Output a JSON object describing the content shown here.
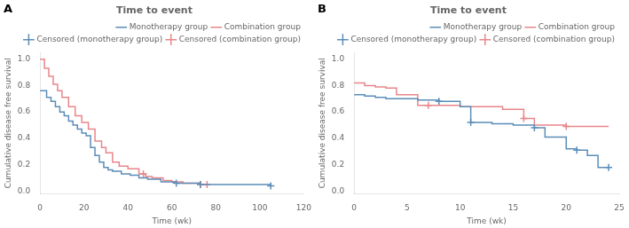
{
  "chart_data": [
    {
      "type": "line",
      "title": "Time to event",
      "xlabel": "Time (wk)",
      "ylabel": "Cumulative disease free survival",
      "annotations": [
        {
          "text": "A"
        }
      ],
      "xlim": [
        0,
        120
      ],
      "ylim": [
        -0.02,
        1.05
      ],
      "xticks": [
        0,
        20,
        40,
        60,
        80,
        100,
        120
      ],
      "yticks": [
        {
          "value": 0,
          "label": "0.0"
        },
        0.2,
        0.4,
        0.6,
        0.8,
        {
          "value": 1.0,
          "label": "1.0"
        }
      ],
      "grid": false,
      "legend": "upper right",
      "series": [
        {
          "name": "Monotherapy group",
          "type": "step",
          "color": "#5B8DB8",
          "x": [
            0,
            3,
            5,
            7,
            9,
            11,
            13,
            15,
            17,
            19,
            21,
            23,
            25,
            27,
            29,
            31,
            33,
            37,
            41,
            45,
            49,
            55,
            62,
            73,
            105
          ],
          "values": [
            0.76,
            0.71,
            0.68,
            0.64,
            0.6,
            0.57,
            0.53,
            0.5,
            0.47,
            0.44,
            0.42,
            0.33,
            0.27,
            0.22,
            0.18,
            0.16,
            0.15,
            0.13,
            0.12,
            0.1,
            0.09,
            0.07,
            0.06,
            0.05,
            0.04
          ]
        },
        {
          "name": "Combination group",
          "type": "step",
          "color": "#E8868A",
          "x": [
            0,
            2,
            4,
            6,
            8,
            10,
            13,
            16,
            19,
            22,
            25,
            28,
            30,
            33,
            36,
            40,
            45,
            48,
            51,
            56,
            60,
            65,
            73,
            76
          ],
          "values": [
            1.0,
            0.93,
            0.87,
            0.81,
            0.76,
            0.71,
            0.64,
            0.57,
            0.52,
            0.47,
            0.38,
            0.33,
            0.29,
            0.22,
            0.19,
            0.17,
            0.13,
            0.11,
            0.1,
            0.08,
            0.07,
            0.06,
            0.05,
            0.05
          ]
        },
        {
          "name": "Censored (monotherapy group)",
          "type": "scatter",
          "marker": "plus",
          "color": "#5B8DB8",
          "x": [
            62,
            73,
            105
          ],
          "values": [
            0.06,
            0.05,
            0.04
          ]
        },
        {
          "name": "Censored (combination group)",
          "type": "scatter",
          "marker": "plus",
          "color": "#E8868A",
          "x": [
            47,
            73,
            76
          ],
          "values": [
            0.13,
            0.05,
            0.05
          ]
        }
      ]
    },
    {
      "type": "line",
      "title": "Time to event",
      "xlabel": "Time (wk)",
      "ylabel": "Cumulative disease free survival",
      "annotations": [
        {
          "text": "B"
        }
      ],
      "xlim": [
        0,
        25
      ],
      "ylim": [
        -0.02,
        1.05
      ],
      "xticks": [
        0,
        5,
        10,
        15,
        20,
        25
      ],
      "yticks": [
        {
          "value": 0,
          "label": "0.0"
        },
        0.2,
        0.4,
        0.6,
        0.8,
        {
          "value": 1.0,
          "label": "1.0"
        }
      ],
      "grid": false,
      "legend": "upper right",
      "series": [
        {
          "name": "Monotherapy group",
          "type": "step",
          "color": "#5B8DB8",
          "x": [
            0,
            1,
            2,
            3,
            4,
            6,
            8,
            10,
            11,
            13,
            15,
            17,
            18,
            20,
            21,
            22,
            23,
            24
          ],
          "values": [
            0.73,
            0.72,
            0.71,
            0.7,
            0.7,
            0.69,
            0.68,
            0.64,
            0.52,
            0.51,
            0.5,
            0.48,
            0.41,
            0.32,
            0.31,
            0.27,
            0.18,
            0.18
          ]
        },
        {
          "name": "Combination group",
          "type": "step",
          "color": "#E8868A",
          "x": [
            0,
            1,
            2,
            3,
            4,
            6,
            7,
            9,
            10,
            12,
            14,
            16,
            17,
            19,
            20,
            24
          ],
          "values": [
            0.82,
            0.8,
            0.79,
            0.78,
            0.73,
            0.65,
            0.65,
            0.65,
            0.64,
            0.64,
            0.62,
            0.55,
            0.5,
            0.5,
            0.49,
            0.49
          ]
        },
        {
          "name": "Censored (monotherapy group)",
          "type": "scatter",
          "marker": "plus",
          "color": "#5B8DB8",
          "x": [
            8,
            11,
            17,
            21,
            24
          ],
          "values": [
            0.68,
            0.52,
            0.48,
            0.31,
            0.18
          ]
        },
        {
          "name": "Censored (combination group)",
          "type": "scatter",
          "marker": "plus",
          "color": "#E8868A",
          "x": [
            7,
            16,
            20
          ],
          "values": [
            0.65,
            0.55,
            0.49
          ]
        }
      ]
    }
  ]
}
